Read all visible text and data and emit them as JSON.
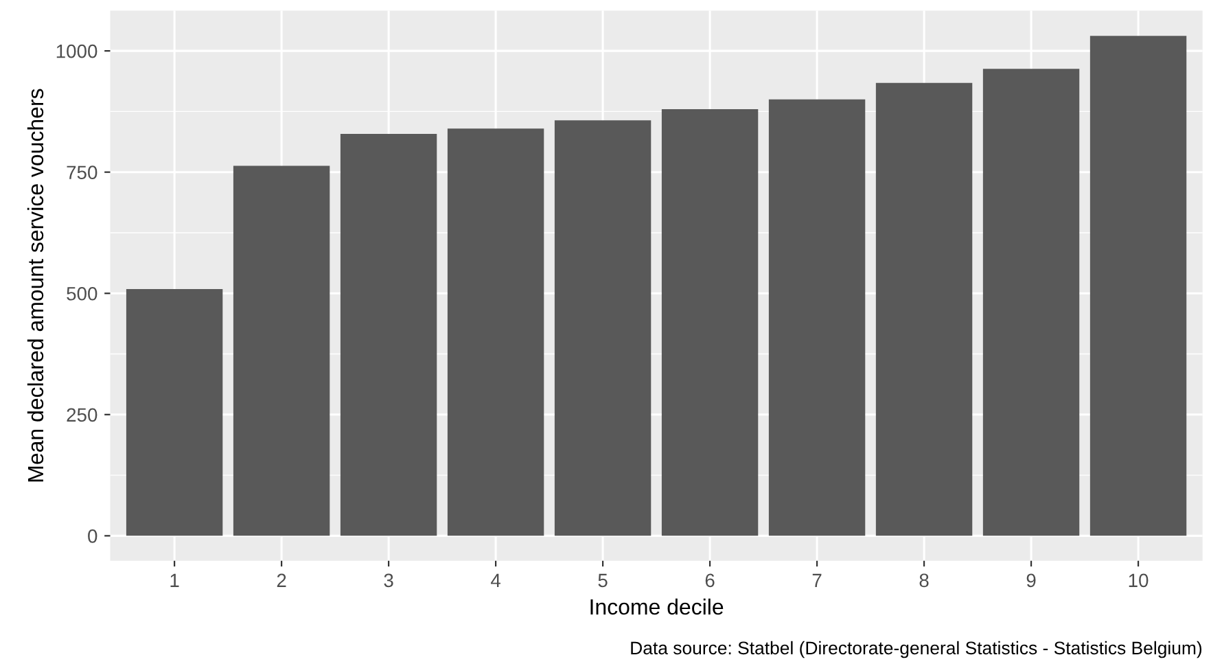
{
  "chart_data": {
    "type": "bar",
    "xlabel": "Income decile",
    "ylabel": "Mean declared amount service vouchers",
    "categories": [
      "1",
      "2",
      "3",
      "4",
      "5",
      "6",
      "7",
      "8",
      "9",
      "10"
    ],
    "values": [
      509,
      763,
      829,
      840,
      857,
      880,
      900,
      934,
      963,
      1031
    ],
    "color": "#595959",
    "ylim": [
      -51.5,
      1083
    ],
    "yticks": [
      0,
      250,
      500,
      750,
      1000
    ],
    "grid": true,
    "annotations": [
      "Data source: Statbel (Directorate-general Statistics - Statistics Belgium)"
    ]
  }
}
